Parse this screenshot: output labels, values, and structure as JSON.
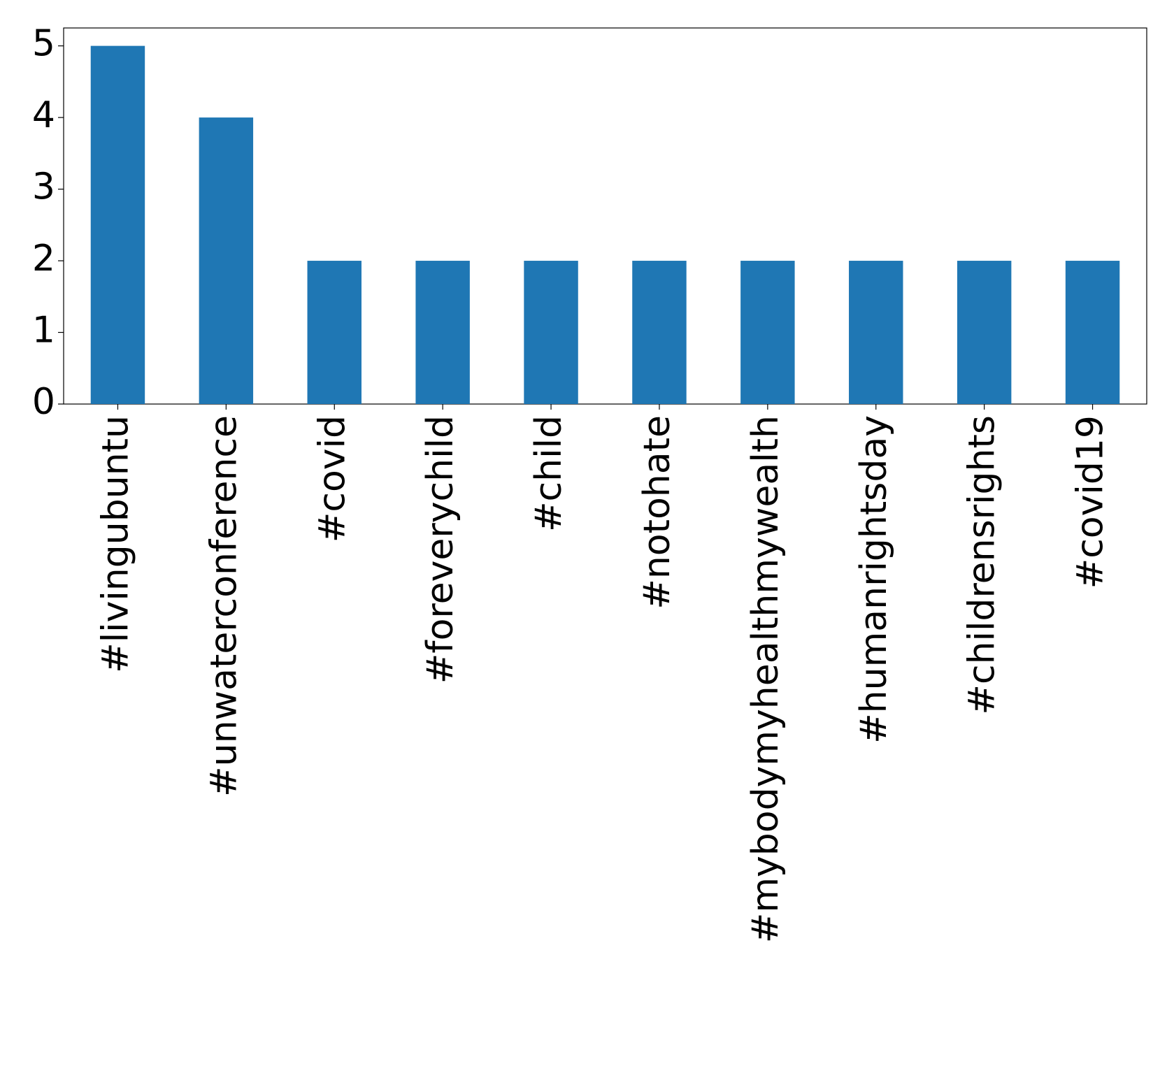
{
  "chart_data": {
    "type": "bar",
    "categories": [
      "#livingubuntu",
      "#unwaterconference",
      "#covid",
      "#foreverychild",
      "#child",
      "#notohate",
      "#mybodymyhealthmywealth",
      "#humanrightsday",
      "#childrensrights",
      "#covid19"
    ],
    "values": [
      5,
      4,
      2,
      2,
      2,
      2,
      2,
      2,
      2,
      2
    ],
    "color": "#1f77b4",
    "ylim": [
      0,
      5.25
    ],
    "yticks": [
      0,
      1,
      2,
      3,
      4,
      5
    ],
    "grid": false
  }
}
